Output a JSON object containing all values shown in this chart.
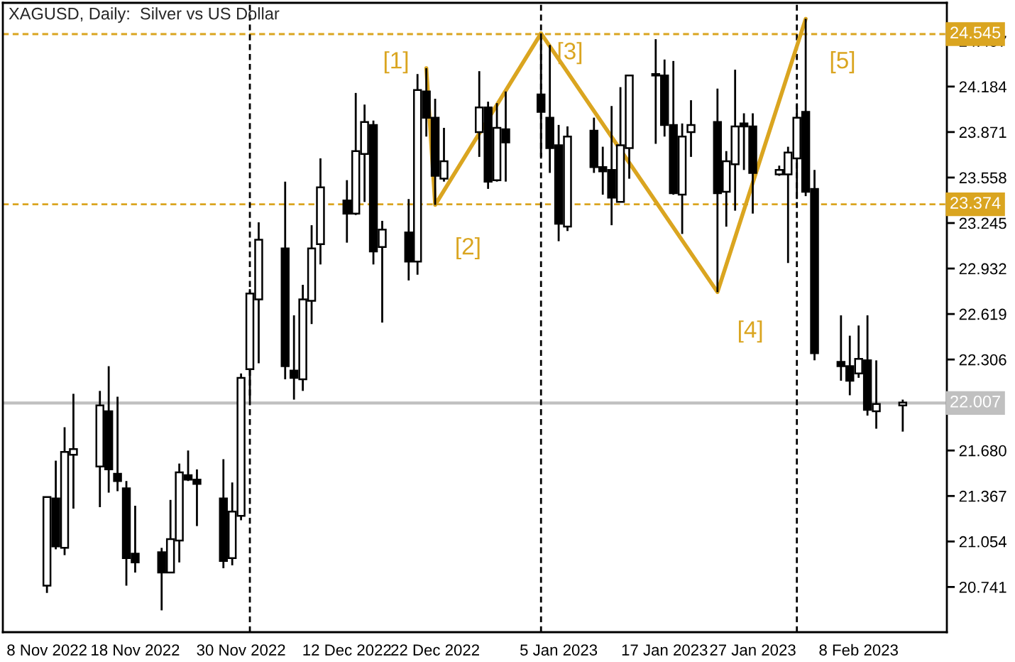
{
  "chart_data": {
    "type": "candlestick",
    "title": "XAGUSD, Daily:  Silver vs US Dollar",
    "x": [
      "2022-11-08",
      "2022-11-09",
      "2022-11-10",
      "2022-11-11",
      "2022-11-14",
      "2022-11-15",
      "2022-11-16",
      "2022-11-17",
      "2022-11-18",
      "2022-11-21",
      "2022-11-22",
      "2022-11-23",
      "2022-11-24",
      "2022-11-25",
      "2022-11-28",
      "2022-11-29",
      "2022-11-30",
      "2022-12-01",
      "2022-12-02",
      "2022-12-05",
      "2022-12-06",
      "2022-12-07",
      "2022-12-08",
      "2022-12-09",
      "2022-12-12",
      "2022-12-13",
      "2022-12-14",
      "2022-12-15",
      "2022-12-16",
      "2022-12-19",
      "2022-12-20",
      "2022-12-21",
      "2022-12-22",
      "2022-12-23",
      "2022-12-27",
      "2022-12-28",
      "2022-12-29",
      "2022-12-30",
      "2023-01-03",
      "2023-01-04",
      "2023-01-05",
      "2023-01-06",
      "2023-01-09",
      "2023-01-10",
      "2023-01-11",
      "2023-01-12",
      "2023-01-13",
      "2023-01-16",
      "2023-01-17",
      "2023-01-18",
      "2023-01-19",
      "2023-01-20",
      "2023-01-23",
      "2023-01-24",
      "2023-01-25",
      "2023-01-26",
      "2023-01-27",
      "2023-01-30",
      "2023-01-31",
      "2023-02-01",
      "2023-02-02",
      "2023-02-03",
      "2023-02-06",
      "2023-02-07",
      "2023-02-08",
      "2023-02-09",
      "2023-02-10",
      "2023-02-13"
    ],
    "ohlc": [
      [
        20.75,
        21.36,
        20.7,
        21.36
      ],
      [
        21.35,
        21.61,
        21.0,
        21.02
      ],
      [
        21.01,
        21.84,
        20.96,
        21.67
      ],
      [
        21.65,
        22.07,
        21.28,
        21.69
      ],
      [
        21.57,
        22.09,
        21.29,
        21.99
      ],
      [
        21.95,
        22.26,
        21.39,
        21.55
      ],
      [
        21.52,
        22.05,
        21.4,
        21.47
      ],
      [
        21.42,
        21.47,
        20.75,
        20.94
      ],
      [
        20.97,
        21.3,
        20.84,
        20.91
      ],
      [
        20.98,
        21.01,
        20.58,
        20.84
      ],
      [
        20.84,
        21.34,
        20.84,
        21.07
      ],
      [
        21.06,
        21.59,
        20.91,
        21.53
      ],
      [
        21.51,
        21.68,
        21.47,
        21.48
      ],
      [
        21.48,
        21.55,
        21.16,
        21.45
      ],
      [
        21.35,
        21.62,
        20.87,
        20.92
      ],
      [
        20.94,
        21.46,
        20.89,
        21.26
      ],
      [
        21.23,
        22.21,
        21.2,
        22.18
      ],
      [
        22.24,
        22.79,
        22.03,
        22.76
      ],
      [
        22.72,
        23.25,
        22.28,
        23.13
      ],
      [
        23.07,
        23.53,
        22.17,
        22.26
      ],
      [
        22.23,
        22.61,
        22.03,
        22.18
      ],
      [
        22.17,
        22.82,
        22.09,
        22.72
      ],
      [
        22.71,
        23.23,
        22.55,
        23.07
      ],
      [
        23.1,
        23.69,
        22.96,
        23.49
      ],
      [
        23.4,
        23.54,
        23.11,
        23.31
      ],
      [
        23.31,
        24.14,
        23.3,
        23.74
      ],
      [
        23.72,
        24.06,
        23.39,
        23.94
      ],
      [
        23.92,
        23.95,
        22.96,
        23.05
      ],
      [
        23.08,
        23.26,
        22.56,
        23.2
      ],
      [
        23.18,
        23.41,
        22.85,
        22.98
      ],
      [
        22.98,
        24.27,
        22.89,
        24.16
      ],
      [
        24.15,
        24.31,
        23.84,
        23.97
      ],
      [
        23.97,
        24.1,
        23.37,
        23.57
      ],
      [
        23.55,
        23.9,
        23.53,
        23.67
      ],
      [
        23.87,
        24.29,
        23.7,
        24.04
      ],
      [
        24.04,
        24.08,
        23.48,
        23.53
      ],
      [
        23.54,
        24.07,
        23.53,
        23.9
      ],
      [
        23.89,
        24.15,
        23.53,
        23.8
      ],
      [
        24.13,
        24.55,
        23.7,
        24.01
      ],
      [
        23.97,
        24.47,
        23.59,
        23.76
      ],
      [
        23.78,
        23.92,
        23.12,
        23.24
      ],
      [
        23.22,
        23.91,
        23.19,
        23.84
      ],
      [
        23.88,
        23.97,
        23.59,
        23.63
      ],
      [
        23.63,
        23.77,
        23.44,
        23.6
      ],
      [
        23.61,
        24.05,
        23.23,
        23.42
      ],
      [
        23.39,
        24.18,
        23.39,
        23.78
      ],
      [
        23.76,
        24.26,
        23.55,
        24.26
      ],
      [
        24.27,
        24.51,
        23.79,
        24.26
      ],
      [
        24.26,
        24.37,
        23.84,
        23.92
      ],
      [
        23.92,
        24.36,
        23.44,
        23.45
      ],
      [
        23.44,
        23.93,
        23.17,
        23.84
      ],
      [
        23.87,
        24.09,
        23.7,
        23.92
      ],
      [
        23.94,
        24.17,
        22.77,
        23.45
      ],
      [
        23.46,
        23.74,
        23.22,
        23.67
      ],
      [
        23.65,
        24.3,
        23.33,
        23.91
      ],
      [
        23.93,
        24.0,
        23.61,
        23.91
      ],
      [
        23.91,
        24.0,
        23.31,
        23.59
      ],
      [
        23.58,
        23.64,
        23.57,
        23.61
      ],
      [
        23.58,
        23.77,
        22.97,
        23.73
      ],
      [
        23.69,
        24.06,
        23.41,
        23.97
      ],
      [
        24.01,
        24.65,
        23.43,
        23.46
      ],
      [
        23.48,
        23.61,
        22.3,
        22.35
      ],
      [
        22.29,
        22.61,
        22.16,
        22.26
      ],
      [
        22.26,
        22.47,
        22.06,
        22.16
      ],
      [
        22.21,
        22.54,
        22.18,
        22.31
      ],
      [
        22.3,
        22.61,
        21.92,
        21.96
      ],
      [
        21.95,
        22.3,
        21.83,
        22.0
      ],
      [
        21.99,
        22.03,
        21.81,
        22.01
      ]
    ],
    "series": [
      {
        "type": "line",
        "color": "#daa520",
        "x": [
          "2022-12-21",
          "2022-12-22",
          "2023-01-03",
          "2023-01-23",
          "2023-02-02"
        ],
        "values": [
          24.31,
          23.37,
          24.55,
          22.77,
          24.65
        ]
      }
    ],
    "annotations": [
      {
        "text": "[1]",
        "x": "2022-12-21",
        "y": 24.31
      },
      {
        "text": "[2]",
        "x": "2022-12-22",
        "y": 23.37
      },
      {
        "text": "[3]",
        "x": "2023-01-03",
        "y": 24.55
      },
      {
        "text": "[4]",
        "x": "2023-01-23",
        "y": 22.77
      },
      {
        "text": "[5]",
        "x": "2023-02-02",
        "y": 24.65
      }
    ],
    "ref_lines": [
      {
        "axis": "y",
        "value": 24.545,
        "label": "24.545",
        "color": "#daa520",
        "line_style": "dashed"
      },
      {
        "axis": "y",
        "value": 23.374,
        "label": "23.374",
        "color": "#daa520",
        "line_style": "dashed"
      },
      {
        "axis": "y",
        "value": 22.007,
        "label": "22.007",
        "color": "#c0c0c0",
        "line_style": "solid"
      },
      {
        "axis": "x",
        "value": "2022-12-01",
        "label": null,
        "color": "#000000",
        "line_style": "dashed"
      },
      {
        "axis": "x",
        "value": "2023-01-03",
        "label": null,
        "color": "#000000",
        "line_style": "dashed"
      },
      {
        "axis": "x",
        "value": "2023-02-01",
        "label": null,
        "color": "#000000",
        "line_style": "dashed"
      }
    ],
    "xlim": [
      "2022-11-03",
      "2023-02-18"
    ],
    "xticks": [
      {
        "value": "2022-11-08",
        "label": "8 Nov 2022"
      },
      {
        "value": "2022-11-18",
        "label": "18 Nov 2022"
      },
      {
        "value": "2022-11-30",
        "label": "30 Nov 2022"
      },
      {
        "value": "2022-12-12",
        "label": "12 Dec 2022"
      },
      {
        "value": "2022-12-22",
        "label": "22 Dec 2022"
      },
      {
        "value": "2023-01-05",
        "label": "5 Jan 2023"
      },
      {
        "value": "2023-01-17",
        "label": "17 Jan 2023"
      },
      {
        "value": "2023-01-27",
        "label": "27 Jan 2023"
      },
      {
        "value": "2023-02-08",
        "label": "8 Feb 2023"
      }
    ],
    "ylim": [
      20.43,
      24.76
    ],
    "yticks": [
      20.741,
      21.054,
      21.367,
      {
        "value": 21.68,
        "label": "21.680"
      },
      22.306,
      22.619,
      22.932,
      23.245,
      23.558,
      23.871,
      24.184,
      24.497
    ],
    "grid": false,
    "legend": false
  }
}
